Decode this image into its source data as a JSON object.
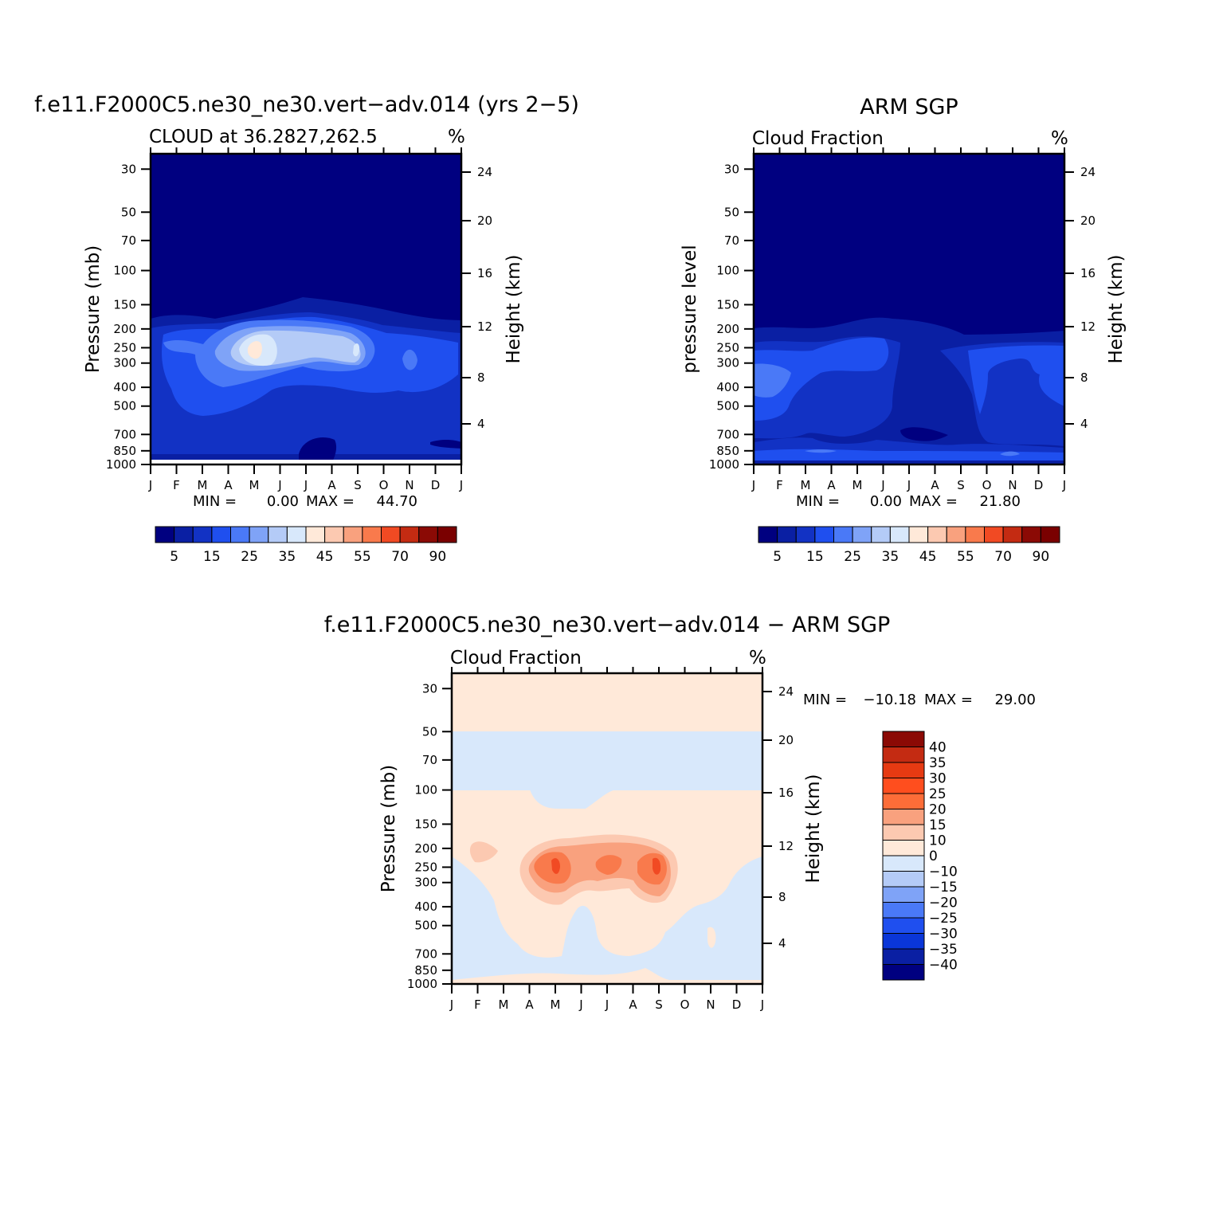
{
  "colors": {
    "c1": "#000080",
    "c2": "#0a1fa3",
    "c3": "#1232c4",
    "c4": "#1f4fef",
    "c5": "#4a79f7",
    "c6": "#7fa3f7",
    "c7": "#b4cbf7",
    "c8": "#d8e8fb",
    "w1": "#ffe9d9",
    "w2": "#fcc9b1",
    "w3": "#f9a17e",
    "w4": "#f97a4c",
    "w5": "#f14a23",
    "w6": "#c42b12",
    "w7": "#8b0a05"
  },
  "chart_data": [
    {
      "type": "heatmap",
      "title": "f.e11.F2000C5.ne30_ne30.vert−adv.014 (yrs 2−5)",
      "subtitle_left": "CLOUD at 36.2827,262.5",
      "units": "%",
      "ylabel": "Pressure (mb)",
      "ylabel_right": "Height (km)",
      "x_ticks": [
        "J",
        "F",
        "M",
        "A",
        "M",
        "J",
        "J",
        "A",
        "S",
        "O",
        "N",
        "D",
        "J"
      ],
      "y_ticks": [
        "30",
        "50",
        "70",
        "100",
        "150",
        "200",
        "250",
        "300",
        "400",
        "500",
        "700",
        "850",
        "1000"
      ],
      "y_ticks_right": [
        "24",
        "20",
        "16",
        "12",
        "8",
        "4"
      ],
      "stats": {
        "min_label": "MIN =",
        "min": "0.00",
        "max_label": "MAX =",
        "max": "44.70"
      },
      "colorbar": {
        "labels": [
          "5",
          "15",
          "25",
          "35",
          "45",
          "55",
          "70",
          "90"
        ]
      },
      "cloud_layer": {
        "base_mb": 200,
        "peak_mb": 250,
        "peak_value": 44.7,
        "peak_month": "M"
      }
    },
    {
      "type": "heatmap",
      "title": "ARM SGP",
      "subtitle_left": "Cloud Fraction",
      "units": "%",
      "ylabel": "pressure level",
      "ylabel_right": "Height (km)",
      "x_ticks": [
        "J",
        "F",
        "M",
        "A",
        "M",
        "J",
        "J",
        "A",
        "S",
        "O",
        "N",
        "D",
        "J"
      ],
      "y_ticks": [
        "30",
        "50",
        "70",
        "100",
        "150",
        "200",
        "250",
        "300",
        "400",
        "500",
        "700",
        "850",
        "1000"
      ],
      "y_ticks_right": [
        "24",
        "20",
        "16",
        "12",
        "8",
        "4"
      ],
      "stats": {
        "min_label": "MIN =",
        "min": "0.00",
        "max_label": "MAX =",
        "max": "21.80"
      },
      "colorbar": {
        "labels": [
          "5",
          "15",
          "25",
          "35",
          "45",
          "55",
          "70",
          "90"
        ]
      }
    },
    {
      "type": "heatmap",
      "title": "f.e11.F2000C5.ne30_ne30.vert−adv.014 − ARM SGP",
      "subtitle_left": "Cloud Fraction",
      "units": "%",
      "ylabel": "Pressure (mb)",
      "ylabel_right": "Height (km)",
      "x_ticks": [
        "J",
        "F",
        "M",
        "A",
        "M",
        "J",
        "J",
        "A",
        "S",
        "O",
        "N",
        "D",
        "J"
      ],
      "y_ticks": [
        "30",
        "50",
        "70",
        "100",
        "150",
        "200",
        "250",
        "300",
        "400",
        "500",
        "700",
        "850",
        "1000"
      ],
      "y_ticks_right": [
        "24",
        "20",
        "16",
        "12",
        "8",
        "4"
      ],
      "stats": {
        "min_label": "MIN =",
        "min": "−10.18",
        "max_label": "MAX =",
        "max": "29.00"
      },
      "colorbar": {
        "labels": [
          "40",
          "35",
          "30",
          "25",
          "20",
          "15",
          "10",
          "0",
          "−10",
          "−15",
          "−20",
          "−25",
          "−30",
          "−35",
          "−40"
        ]
      }
    }
  ]
}
